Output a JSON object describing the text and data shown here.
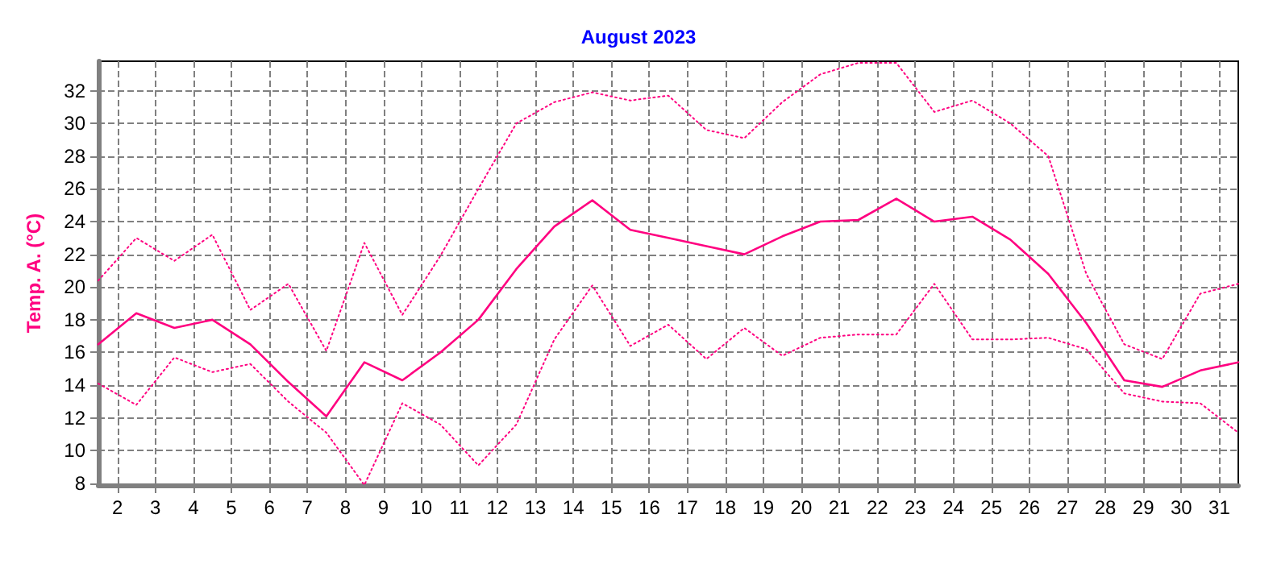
{
  "chart_data": {
    "type": "line",
    "title": "August 2023",
    "ylabel": "Temp. A. (°C)",
    "x": [
      1.5,
      2.5,
      3.5,
      4.5,
      5.5,
      6.5,
      7.5,
      8.5,
      9.5,
      10.5,
      11.5,
      12.5,
      13.5,
      14.5,
      15.5,
      16.5,
      17.5,
      18.5,
      19.5,
      20.5,
      21.5,
      22.5,
      23.5,
      24.5,
      25.5,
      26.5,
      27.5,
      28.5,
      29.5,
      30.5,
      31.5
    ],
    "series": [
      {
        "color": "#ff0080",
        "line_style": "dotted",
        "values": [
          20.4,
          23.0,
          21.6,
          23.2,
          18.6,
          20.2,
          16.1,
          22.7,
          18.3,
          21.9,
          26.0,
          30.0,
          31.3,
          31.9,
          31.4,
          31.7,
          29.6,
          29.1,
          31.3,
          33.0,
          33.7,
          33.7,
          30.7,
          31.4,
          30.0,
          28.0,
          20.8,
          16.5,
          15.6,
          19.6,
          20.2
        ]
      },
      {
        "color": "#ff0080",
        "line_style": "solid",
        "values": [
          16.5,
          18.4,
          17.5,
          18.0,
          16.5,
          14.2,
          12.1,
          15.4,
          14.3,
          16.0,
          18.0,
          21.1,
          23.7,
          25.3,
          23.5,
          23.0,
          22.5,
          22.0,
          23.1,
          24.0,
          24.1,
          25.4,
          24.0,
          24.3,
          22.9,
          20.8,
          17.8,
          14.3,
          13.9,
          14.9,
          15.4
        ]
      },
      {
        "color": "#ff0080",
        "line_style": "dotted",
        "values": [
          14.1,
          12.8,
          15.7,
          14.8,
          15.3,
          13.0,
          11.1,
          7.9,
          12.9,
          11.6,
          9.1,
          11.6,
          16.8,
          20.1,
          16.4,
          17.7,
          15.6,
          17.5,
          15.8,
          16.9,
          17.1,
          17.1,
          20.2,
          16.8,
          16.8,
          16.9,
          16.2,
          13.5,
          13.0,
          12.9,
          11.1
        ]
      }
    ],
    "xlim": [
      1.5,
      31.5
    ],
    "xticks": [
      2,
      3,
      4,
      5,
      6,
      7,
      8,
      9,
      10,
      11,
      12,
      13,
      14,
      15,
      16,
      17,
      18,
      19,
      20,
      21,
      22,
      23,
      24,
      25,
      26,
      27,
      28,
      29,
      30,
      31
    ],
    "ylim": [
      7.9,
      33.8
    ],
    "yticks": [
      8,
      10,
      12,
      14,
      16,
      18,
      20,
      22,
      24,
      26,
      28,
      30,
      32
    ],
    "grid": true,
    "marker": "none"
  }
}
